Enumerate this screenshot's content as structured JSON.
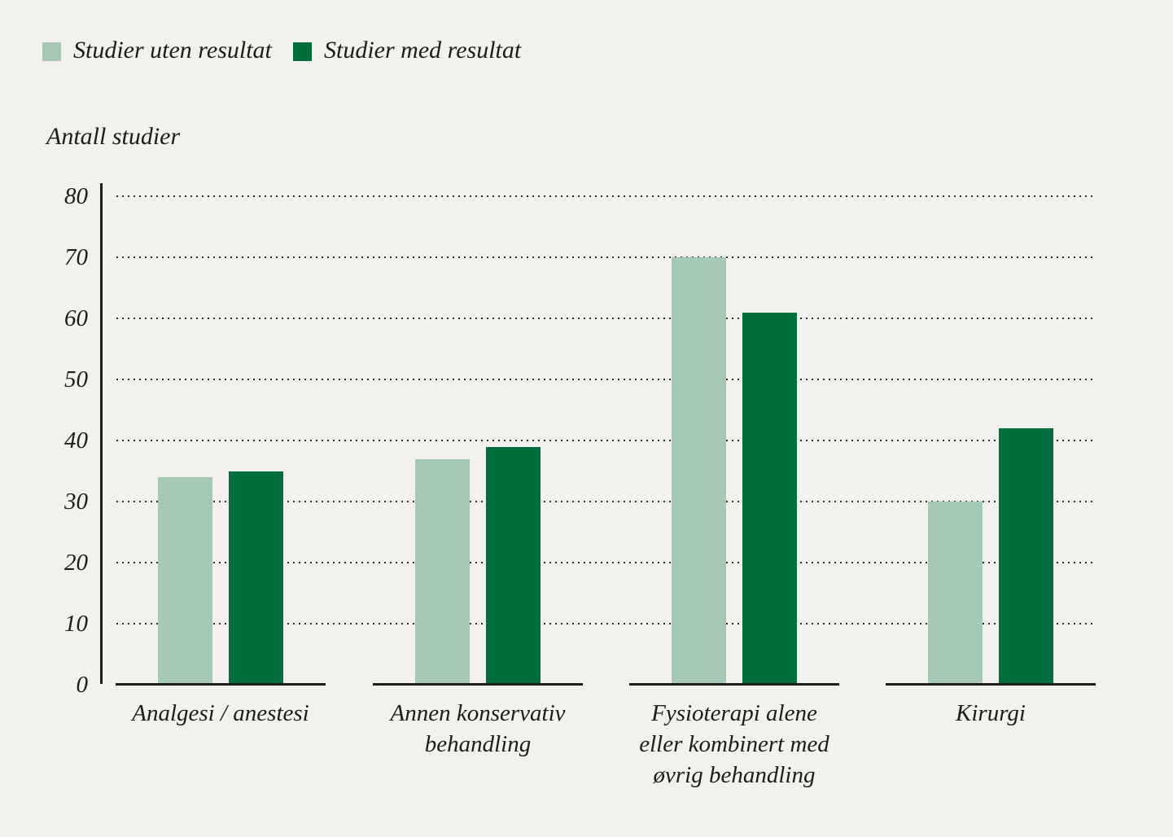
{
  "colors": {
    "background": "#f2f1ee",
    "light_green": "#a5c9b3",
    "dark_green": "#006f3c",
    "ink": "#1d1c1a"
  },
  "chart_data": {
    "type": "bar",
    "title": "",
    "ylabel": "Antall studier",
    "xlabel": "",
    "ylim": [
      0,
      80
    ],
    "ytick_step": 10,
    "grid": "dotted-horizontal",
    "legend_position": "top-left",
    "categories": [
      "Analgesi / anestesi",
      "Annen konservativ behandling",
      "Fysioterapi alene eller kombinert med øvrig behandling",
      "Kirurgi"
    ],
    "category_lines": [
      [
        "Analgesi / anestesi"
      ],
      [
        "Annen konservativ",
        "behandling"
      ],
      [
        "Fysioterapi alene",
        "eller kombinert med",
        "øvrig behandling"
      ],
      [
        "Kirurgi"
      ]
    ],
    "series": [
      {
        "name": "Studier uten resultat",
        "color": "#a5c9b3",
        "values": [
          34,
          37,
          70,
          30
        ]
      },
      {
        "name": "Studier med resultat",
        "color": "#006f3c",
        "values": [
          35,
          39,
          61,
          42
        ]
      }
    ],
    "yticks": [
      0,
      10,
      20,
      30,
      40,
      50,
      60,
      70,
      80
    ]
  }
}
